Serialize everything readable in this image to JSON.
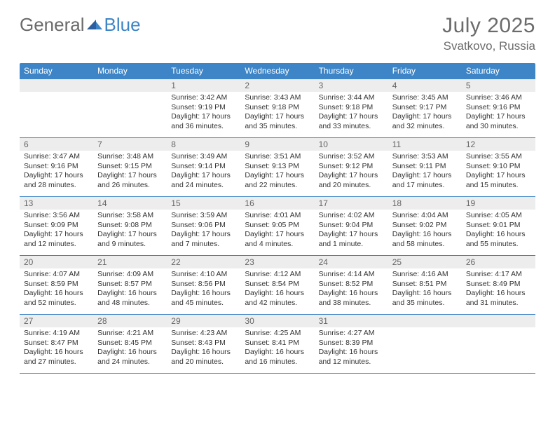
{
  "logo": {
    "text1": "General",
    "text2": "Blue"
  },
  "title": "July 2025",
  "location": "Svatkovo, Russia",
  "colors": {
    "header_bg": "#3d85c6",
    "header_text": "#ffffff",
    "daynum_bg": "#ededed",
    "daynum_text": "#666666",
    "row_border": "#3d85c6",
    "body_bg": "#ffffff",
    "text": "#333333",
    "title_text": "#6b6b6b"
  },
  "table": {
    "columns": [
      "Sunday",
      "Monday",
      "Tuesday",
      "Wednesday",
      "Thursday",
      "Friday",
      "Saturday"
    ],
    "font": {
      "header_size_pt": 12,
      "daynum_size_pt": 12,
      "body_size_pt": 10.5,
      "family": "Arial"
    }
  },
  "weeks": [
    [
      null,
      null,
      {
        "n": "1",
        "sr": "3:42 AM",
        "ss": "9:19 PM",
        "dl": "17 hours and 36 minutes."
      },
      {
        "n": "2",
        "sr": "3:43 AM",
        "ss": "9:18 PM",
        "dl": "17 hours and 35 minutes."
      },
      {
        "n": "3",
        "sr": "3:44 AM",
        "ss": "9:18 PM",
        "dl": "17 hours and 33 minutes."
      },
      {
        "n": "4",
        "sr": "3:45 AM",
        "ss": "9:17 PM",
        "dl": "17 hours and 32 minutes."
      },
      {
        "n": "5",
        "sr": "3:46 AM",
        "ss": "9:16 PM",
        "dl": "17 hours and 30 minutes."
      }
    ],
    [
      {
        "n": "6",
        "sr": "3:47 AM",
        "ss": "9:16 PM",
        "dl": "17 hours and 28 minutes."
      },
      {
        "n": "7",
        "sr": "3:48 AM",
        "ss": "9:15 PM",
        "dl": "17 hours and 26 minutes."
      },
      {
        "n": "8",
        "sr": "3:49 AM",
        "ss": "9:14 PM",
        "dl": "17 hours and 24 minutes."
      },
      {
        "n": "9",
        "sr": "3:51 AM",
        "ss": "9:13 PM",
        "dl": "17 hours and 22 minutes."
      },
      {
        "n": "10",
        "sr": "3:52 AM",
        "ss": "9:12 PM",
        "dl": "17 hours and 20 minutes."
      },
      {
        "n": "11",
        "sr": "3:53 AM",
        "ss": "9:11 PM",
        "dl": "17 hours and 17 minutes."
      },
      {
        "n": "12",
        "sr": "3:55 AM",
        "ss": "9:10 PM",
        "dl": "17 hours and 15 minutes."
      }
    ],
    [
      {
        "n": "13",
        "sr": "3:56 AM",
        "ss": "9:09 PM",
        "dl": "17 hours and 12 minutes."
      },
      {
        "n": "14",
        "sr": "3:58 AM",
        "ss": "9:08 PM",
        "dl": "17 hours and 9 minutes."
      },
      {
        "n": "15",
        "sr": "3:59 AM",
        "ss": "9:06 PM",
        "dl": "17 hours and 7 minutes."
      },
      {
        "n": "16",
        "sr": "4:01 AM",
        "ss": "9:05 PM",
        "dl": "17 hours and 4 minutes."
      },
      {
        "n": "17",
        "sr": "4:02 AM",
        "ss": "9:04 PM",
        "dl": "17 hours and 1 minute."
      },
      {
        "n": "18",
        "sr": "4:04 AM",
        "ss": "9:02 PM",
        "dl": "16 hours and 58 minutes."
      },
      {
        "n": "19",
        "sr": "4:05 AM",
        "ss": "9:01 PM",
        "dl": "16 hours and 55 minutes."
      }
    ],
    [
      {
        "n": "20",
        "sr": "4:07 AM",
        "ss": "8:59 PM",
        "dl": "16 hours and 52 minutes."
      },
      {
        "n": "21",
        "sr": "4:09 AM",
        "ss": "8:57 PM",
        "dl": "16 hours and 48 minutes."
      },
      {
        "n": "22",
        "sr": "4:10 AM",
        "ss": "8:56 PM",
        "dl": "16 hours and 45 minutes."
      },
      {
        "n": "23",
        "sr": "4:12 AM",
        "ss": "8:54 PM",
        "dl": "16 hours and 42 minutes."
      },
      {
        "n": "24",
        "sr": "4:14 AM",
        "ss": "8:52 PM",
        "dl": "16 hours and 38 minutes."
      },
      {
        "n": "25",
        "sr": "4:16 AM",
        "ss": "8:51 PM",
        "dl": "16 hours and 35 minutes."
      },
      {
        "n": "26",
        "sr": "4:17 AM",
        "ss": "8:49 PM",
        "dl": "16 hours and 31 minutes."
      }
    ],
    [
      {
        "n": "27",
        "sr": "4:19 AM",
        "ss": "8:47 PM",
        "dl": "16 hours and 27 minutes."
      },
      {
        "n": "28",
        "sr": "4:21 AM",
        "ss": "8:45 PM",
        "dl": "16 hours and 24 minutes."
      },
      {
        "n": "29",
        "sr": "4:23 AM",
        "ss": "8:43 PM",
        "dl": "16 hours and 20 minutes."
      },
      {
        "n": "30",
        "sr": "4:25 AM",
        "ss": "8:41 PM",
        "dl": "16 hours and 16 minutes."
      },
      {
        "n": "31",
        "sr": "4:27 AM",
        "ss": "8:39 PM",
        "dl": "16 hours and 12 minutes."
      },
      null,
      null
    ]
  ],
  "labels": {
    "sunrise": "Sunrise:",
    "sunset": "Sunset:",
    "daylight": "Daylight:"
  }
}
